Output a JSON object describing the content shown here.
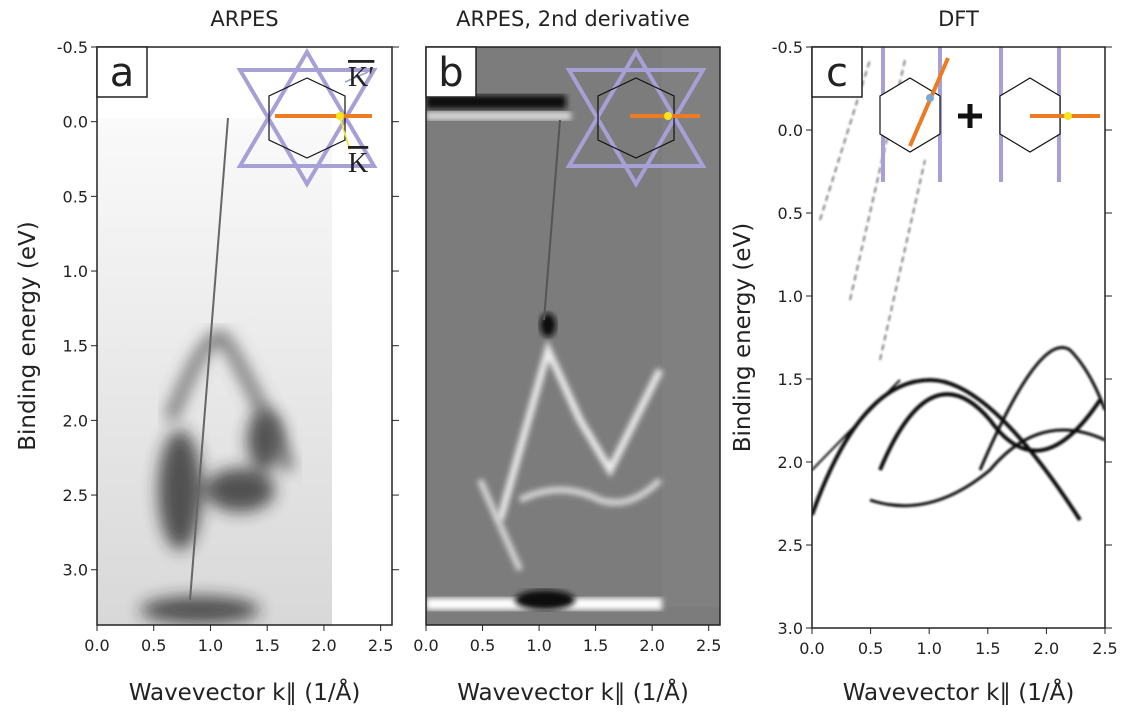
{
  "chart_data": [
    {
      "type": "image",
      "title": "ARPES",
      "panel_label": "a",
      "xlabel": "Wavevector k∥ (1/Å)",
      "ylabel": "Binding energy (eV)",
      "annotations": [
        "K′",
        "K"
      ],
      "xlim": [
        0,
        2.6
      ],
      "ylim": [
        -0.5,
        3.37
      ],
      "xticks": [
        {
          "value": 0,
          "label": "0.0"
        },
        0.5,
        {
          "value": 1,
          "label": "1.0"
        },
        1.5,
        {
          "value": 2,
          "label": "2.0"
        },
        2.5
      ],
      "yticks": [
        -0.5,
        {
          "value": 0,
          "label": "0.0"
        },
        0.5,
        {
          "value": 1,
          "label": "1.0"
        },
        1.5,
        {
          "value": 2,
          "label": "2.0"
        },
        2.5,
        {
          "value": 3,
          "label": "3.0"
        }
      ]
    },
    {
      "type": "image",
      "title": "ARPES, 2nd derivative",
      "panel_label": "b",
      "xlabel": "Wavevector k∥ (1/Å)",
      "xlim": [
        0,
        2.6
      ],
      "ylim": [
        -0.5,
        3.37
      ],
      "xticks": [
        {
          "value": 0,
          "label": "0.0"
        },
        0.5,
        {
          "value": 1,
          "label": "1.0"
        },
        1.5,
        {
          "value": 2,
          "label": "2.0"
        },
        2.5
      ]
    },
    {
      "type": "image",
      "title": "DFT",
      "panel_label": "c",
      "xlabel": "Wavevector k∥ (1/Å)",
      "ylabel": "Binding energy (eV)",
      "xlim": [
        0,
        2.5
      ],
      "ylim": [
        -0.5,
        3.0
      ],
      "xticks": [
        {
          "value": 0,
          "label": "0.0"
        },
        0.5,
        {
          "value": 1,
          "label": "1.0"
        },
        1.5,
        {
          "value": 2,
          "label": "2.0"
        },
        2.5
      ],
      "yticks": [
        -0.5,
        {
          "value": 0,
          "label": "0.0"
        },
        0.5,
        {
          "value": 1,
          "label": "1.0"
        },
        1.5,
        {
          "value": 2,
          "label": "2.0"
        },
        2.5,
        {
          "value": 3,
          "label": "3.0"
        }
      ]
    }
  ]
}
